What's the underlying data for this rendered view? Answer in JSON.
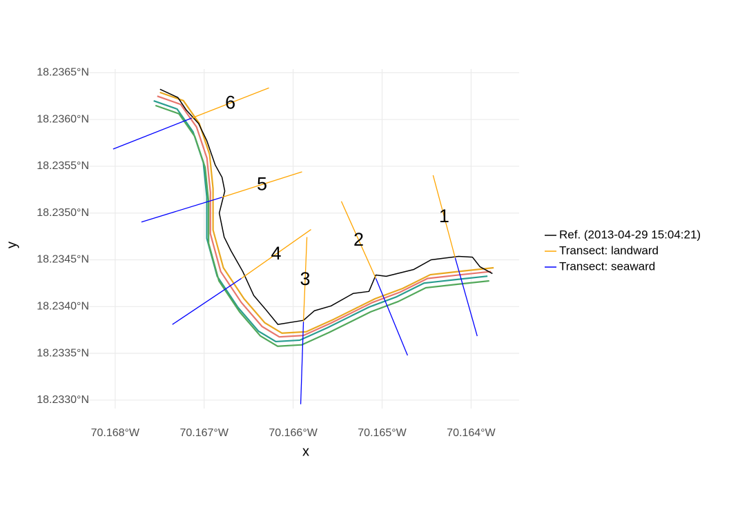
{
  "chart_data": {
    "type": "shoreline-map",
    "x_label": "x",
    "y_label": "y",
    "xlim": [
      -70.16834,
      -70.16346
    ],
    "ylim": [
      18.23291,
      18.23654
    ],
    "xticks": [
      {
        "value": -70.168,
        "label": "70.168°W"
      },
      {
        "value": -70.167,
        "label": "70.167°W"
      },
      {
        "value": -70.166,
        "label": "70.166°W"
      },
      {
        "value": -70.165,
        "label": "70.165°W"
      },
      {
        "value": -70.164,
        "label": "70.164°W"
      }
    ],
    "yticks": [
      {
        "value": 18.233,
        "label": "18.2330°N"
      },
      {
        "value": 18.2335,
        "label": "18.2335°N"
      },
      {
        "value": 18.234,
        "label": "18.2340°N"
      },
      {
        "value": 18.2345,
        "label": "18.2345°N"
      },
      {
        "value": 18.235,
        "label": "18.2350°N"
      },
      {
        "value": 18.2355,
        "label": "18.2355°N"
      },
      {
        "value": 18.236,
        "label": "18.2360°N"
      },
      {
        "value": 18.2365,
        "label": "18.2365°N"
      }
    ],
    "grid": true,
    "legend_position": "right",
    "shorelines": [
      {
        "color": "#e7766d",
        "x": [
          -70.167527,
          -70.167264,
          -70.167085,
          -70.166969,
          -70.16693,
          -70.16693,
          -70.166814,
          -70.166582,
          -70.166349,
          -70.166155,
          -70.165884,
          -70.165574,
          -70.165109,
          -70.164799,
          -70.164489,
          -70.16414,
          -70.163776
        ],
        "y": [
          18.23625,
          18.236162,
          18.235919,
          18.235588,
          18.235221,
          18.234779,
          18.234375,
          18.234044,
          18.233787,
          18.233676,
          18.233691,
          18.233824,
          18.234044,
          18.234154,
          18.234301,
          18.234338,
          18.234375
        ]
      },
      {
        "color": "#2a9d8f",
        "x": [
          -70.167567,
          -70.167304,
          -70.167125,
          -70.167009,
          -70.16697,
          -70.16697,
          -70.166854,
          -70.166622,
          -70.166389,
          -70.166195,
          -70.165924,
          -70.165614,
          -70.165149,
          -70.164839,
          -70.164529,
          -70.16418,
          -70.163816
        ],
        "y": [
          18.2362,
          18.236112,
          18.235869,
          18.235538,
          18.235171,
          18.234729,
          18.234325,
          18.233994,
          18.233737,
          18.233626,
          18.233641,
          18.233774,
          18.233994,
          18.234104,
          18.234251,
          18.234288,
          18.234325
        ]
      },
      {
        "color": "#e9a820",
        "x": [
          -70.167497,
          -70.167234,
          -70.167055,
          -70.166939,
          -70.1669,
          -70.1669,
          -70.166784,
          -70.166552,
          -70.166319,
          -70.166125,
          -70.165854,
          -70.165544,
          -70.165079,
          -70.164769,
          -70.164459,
          -70.16411,
          -70.163746
        ],
        "y": [
          18.23629,
          18.236202,
          18.235959,
          18.235628,
          18.235261,
          18.234819,
          18.234415,
          18.234084,
          18.233827,
          18.233716,
          18.233731,
          18.233864,
          18.234084,
          18.234194,
          18.234341,
          18.234378,
          18.234415
        ]
      },
      {
        "color": "#52a85a",
        "x": [
          -70.167547,
          -70.167284,
          -70.167105,
          -70.166989,
          -70.16695,
          -70.16695,
          -70.166834,
          -70.166602,
          -70.166369,
          -70.166175,
          -70.165904,
          -70.165594,
          -70.165129,
          -70.164819,
          -70.164509,
          -70.16416,
          -70.163796
        ],
        "y": [
          18.23615,
          18.236062,
          18.235819,
          18.235488,
          18.235121,
          18.234679,
          18.234275,
          18.233944,
          18.233687,
          18.233576,
          18.233591,
          18.233724,
          18.233944,
          18.234054,
          18.234201,
          18.234238,
          18.234275
        ]
      }
    ],
    "reference": {
      "name": "Ref. (2013-04-29 15:04:21)",
      "color": "#000000",
      "x": [
        -70.167496,
        -70.167295,
        -70.167202,
        -70.167062,
        -70.166969,
        -70.166876,
        -70.166799,
        -70.166768,
        -70.16683,
        -70.166775,
        -70.166698,
        -70.166566,
        -70.166442,
        -70.16631,
        -70.166171,
        -70.165884,
        -70.16576,
        -70.165574,
        -70.165326,
        -70.165148,
        -70.16507,
        -70.164954,
        -70.164644,
        -70.16445,
        -70.16414,
        -70.163985,
        -70.1639,
        -70.16376
      ],
      "y": [
        18.236324,
        18.236235,
        18.236103,
        18.235956,
        18.235772,
        18.235515,
        18.235382,
        18.235235,
        18.235,
        18.234743,
        18.234596,
        18.234375,
        18.234118,
        18.233971,
        18.233809,
        18.233853,
        18.233956,
        18.234007,
        18.23414,
        18.234162,
        18.234338,
        18.234324,
        18.234397,
        18.2345,
        18.234537,
        18.234529,
        18.234426,
        18.234353
      ]
    },
    "transect_legend": [
      {
        "name": "Transect: landward",
        "color": "#ffa500"
      },
      {
        "name": "Transect: seaward",
        "color": "#0000ff"
      }
    ],
    "transects": [
      {
        "label": "1",
        "origin": [
          -70.164179,
          18.234522
        ],
        "landward": [
          -70.164427,
          18.235404
        ],
        "seaward": [
          -70.163931,
          18.233684
        ]
      },
      {
        "label": "2",
        "origin": [
          -70.16507,
          18.234301
        ],
        "landward": [
          -70.165458,
          18.235125
        ],
        "seaward": [
          -70.164714,
          18.233478
        ]
      },
      {
        "label": "3",
        "origin": [
          -70.165884,
          18.233838
        ],
        "landward": [
          -70.165845,
          18.234743
        ],
        "seaward": [
          -70.165915,
          18.232956
        ]
      },
      {
        "label": "4",
        "origin": [
          -70.166582,
          18.234301
        ],
        "landward": [
          -70.165799,
          18.234824
        ],
        "seaward": [
          -70.167357,
          18.233809
        ]
      },
      {
        "label": "5",
        "origin": [
          -70.166799,
          18.235169
        ],
        "landward": [
          -70.1659,
          18.235441
        ],
        "seaward": [
          -70.167705,
          18.234904
        ]
      },
      {
        "label": "6",
        "origin": [
          -70.16714,
          18.236015
        ],
        "landward": [
          -70.166272,
          18.236338
        ],
        "seaward": [
          -70.168023,
          18.235684
        ]
      }
    ]
  }
}
